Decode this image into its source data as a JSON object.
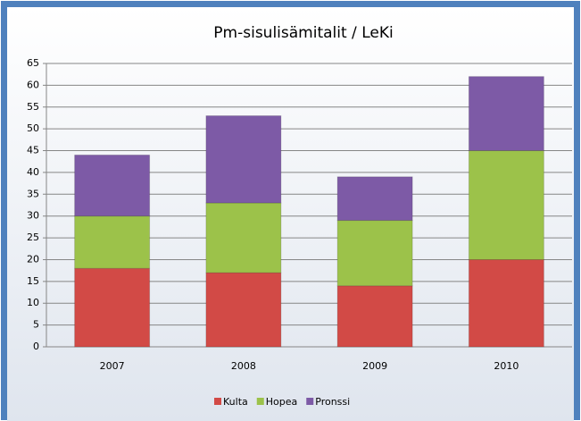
{
  "chart_data": {
    "type": "stacked_bar",
    "title": "Pm-sisulisämitalit / LeKi",
    "categories": [
      "2007",
      "2008",
      "2009",
      "2010"
    ],
    "series": [
      {
        "name": "Kulta",
        "color": "#d24a46",
        "values": [
          18,
          17,
          14,
          20
        ]
      },
      {
        "name": "Hopea",
        "color": "#9cc24a",
        "values": [
          12,
          16,
          15,
          25
        ]
      },
      {
        "name": "Pronssi",
        "color": "#7d5aa6",
        "values": [
          14,
          20,
          10,
          17
        ]
      }
    ],
    "ylim": [
      0,
      65
    ],
    "yticks": [
      0,
      5,
      10,
      15,
      20,
      25,
      30,
      35,
      40,
      45,
      50,
      55,
      60,
      65
    ],
    "grid": true,
    "legend": "bottom"
  }
}
